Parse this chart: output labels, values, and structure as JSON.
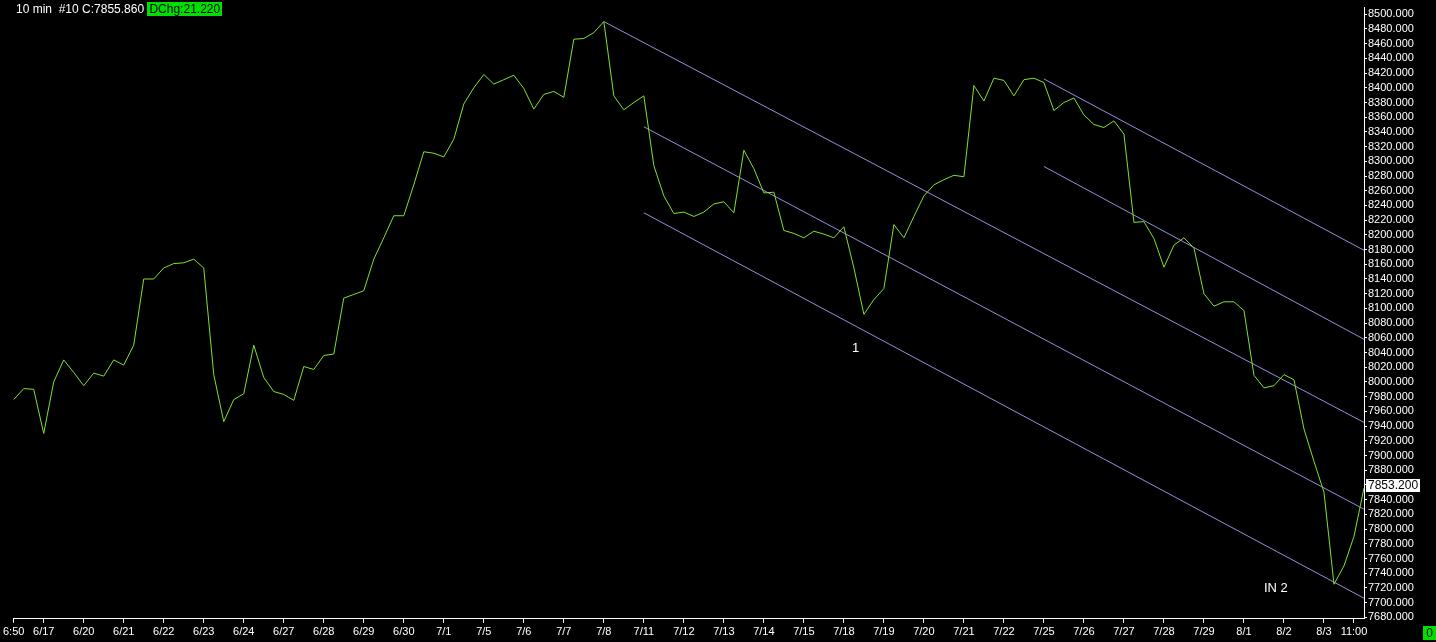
{
  "chart_data": {
    "type": "line",
    "title": "10 min  #10 C:7855.860",
    "subtitle": "DChg:21.220",
    "categories": [
      "6:50",
      null,
      null,
      "6/17",
      null,
      null,
      null,
      "6/20",
      null,
      null,
      null,
      "6/21",
      null,
      null,
      null,
      "6/22",
      null,
      null,
      null,
      "6/23",
      null,
      null,
      null,
      "6/24",
      null,
      null,
      null,
      "6/27",
      null,
      null,
      null,
      "6/28",
      null,
      null,
      null,
      "6/29",
      null,
      null,
      null,
      "6/30",
      null,
      null,
      null,
      "7/1",
      null,
      null,
      null,
      "7/5",
      null,
      null,
      null,
      "7/6",
      null,
      null,
      null,
      "7/7",
      null,
      null,
      null,
      "7/8",
      null,
      null,
      null,
      "7/11",
      null,
      null,
      null,
      "7/12",
      null,
      null,
      null,
      "7/13",
      null,
      null,
      null,
      "7/14",
      null,
      null,
      null,
      "7/15",
      null,
      null,
      null,
      "7/18",
      null,
      null,
      null,
      "7/19",
      null,
      null,
      null,
      "7/20",
      null,
      null,
      null,
      "7/21",
      null,
      null,
      null,
      "7/22",
      null,
      null,
      null,
      "7/25",
      null,
      null,
      null,
      "7/26",
      null,
      null,
      null,
      "7/27",
      null,
      null,
      null,
      "7/28",
      null,
      null,
      null,
      "7/29",
      null,
      null,
      null,
      "8/1",
      null,
      null,
      null,
      "8/2",
      null,
      null,
      null,
      "8/3",
      null,
      null,
      "11:00",
      null
    ],
    "ylim": [
      7678,
      8509
    ],
    "yticks": [
      {
        "value": 7680,
        "label": "7680.000"
      },
      {
        "value": 7700,
        "label": "7700.000"
      },
      {
        "value": 7720,
        "label": "7720.000"
      },
      {
        "value": 7740,
        "label": "7740.000"
      },
      {
        "value": 7760,
        "label": "7760.000"
      },
      {
        "value": 7780,
        "label": "7780.000"
      },
      {
        "value": 7800,
        "label": "7800.000"
      },
      {
        "value": 7820,
        "label": "7820.000"
      },
      {
        "value": 7840,
        "label": "7840.000"
      },
      {
        "value": 7860,
        "label": null
      },
      {
        "value": 7880,
        "label": "7880.000"
      },
      {
        "value": 7900,
        "label": "7900.000"
      },
      {
        "value": 7920,
        "label": "7920.000"
      },
      {
        "value": 7940,
        "label": "7940.000"
      },
      {
        "value": 7960,
        "label": "7960.000"
      },
      {
        "value": 7980,
        "label": "7980.000"
      },
      {
        "value": 8000,
        "label": "8000.000"
      },
      {
        "value": 8020,
        "label": "8020.000"
      },
      {
        "value": 8040,
        "label": "8040.000"
      },
      {
        "value": 8060,
        "label": "8060.000"
      },
      {
        "value": 8080,
        "label": "8080.000"
      },
      {
        "value": 8100,
        "label": "8100.000"
      },
      {
        "value": 8120,
        "label": "8120.000"
      },
      {
        "value": 8140,
        "label": "8140.000"
      },
      {
        "value": 8160,
        "label": "8160.000"
      },
      {
        "value": 8180,
        "label": "8180.000"
      },
      {
        "value": 8200,
        "label": "8200.000"
      },
      {
        "value": 8220,
        "label": "8220.000"
      },
      {
        "value": 8240,
        "label": "8240.000"
      },
      {
        "value": 8260,
        "label": "8260.000"
      },
      {
        "value": 8280,
        "label": "8280.000"
      },
      {
        "value": 8300,
        "label": "8300.000"
      },
      {
        "value": 8320,
        "label": "8320.000"
      },
      {
        "value": 8340,
        "label": "8340.000"
      },
      {
        "value": 8360,
        "label": "8360.000"
      },
      {
        "value": 8380,
        "label": "8380.000"
      },
      {
        "value": 8400,
        "label": "8400.000"
      },
      {
        "value": 8420,
        "label": "8420.000"
      },
      {
        "value": 8440,
        "label": "8440.000"
      },
      {
        "value": 8460,
        "label": "8460.000"
      },
      {
        "value": 8480,
        "label": "8480.000"
      },
      {
        "value": 8500,
        "label": "8500.000"
      }
    ],
    "grid": false,
    "legend": false,
    "marker": "none",
    "series": [
      {
        "color": "#80e030",
        "values": [
          7976,
          7991,
          7990,
          7930,
          8000,
          8030,
          8013,
          7995,
          8012,
          8008,
          8030,
          8023,
          8050,
          8140,
          8140,
          8155,
          8161,
          8162,
          8167,
          8155,
          8010,
          7946,
          7976,
          7984,
          8050,
          8006,
          7987,
          7983,
          7975,
          8021,
          8017,
          8036,
          8038,
          8114,
          8119,
          8124,
          8167,
          8196,
          8226,
          8226,
          8268,
          8313,
          8311,
          8306,
          8330,
          8378,
          8400,
          8418,
          8405,
          8411,
          8417,
          8399,
          8371,
          8391,
          8395,
          8387,
          8466,
          8467,
          8475,
          8490,
          8389,
          8370,
          8380,
          8389,
          8294,
          8253,
          8229,
          8231,
          8225,
          8231,
          8242,
          8245,
          8230,
          8315,
          8290,
          8257,
          8258,
          8206,
          8202,
          8196,
          8205,
          8201,
          8196,
          8211,
          8155,
          8092,
          8112,
          8127,
          8214,
          8196,
          8225,
          8253,
          8268,
          8275,
          8281,
          8279,
          8403,
          8382,
          8413,
          8410,
          8389,
          8411,
          8413,
          8407,
          8369,
          8380,
          8386,
          8363,
          8350,
          8346,
          8355,
          8337,
          8217,
          8218,
          8195,
          8156,
          8186,
          8196,
          8182,
          8120,
          8103,
          8109,
          8109,
          8097,
          8009,
          7992,
          7995,
          8010,
          8003,
          7936,
          7892,
          7850,
          7725,
          7750,
          7790,
          7856
        ]
      },
      {
        "color": "#9090e0",
        "values": [
          null,
          null,
          null,
          null,
          null,
          null,
          null,
          null,
          null,
          null,
          null,
          null,
          null,
          null,
          null,
          null,
          null,
          null,
          null,
          null,
          null,
          null,
          null,
          null,
          null,
          null,
          null,
          null,
          null,
          null,
          null,
          null,
          null,
          null,
          null,
          null,
          null,
          null,
          null,
          null,
          null,
          null,
          null,
          null,
          null,
          null,
          null,
          null,
          null,
          null,
          null,
          null,
          null,
          null,
          null,
          null,
          null,
          null,
          null,
          8490,
          null,
          null,
          null,
          null,
          null,
          null,
          null,
          null,
          null,
          null,
          null,
          null,
          null,
          null,
          null,
          null,
          null,
          null,
          null,
          null,
          null,
          null,
          null,
          null,
          null,
          null,
          null,
          null,
          null,
          null,
          null,
          null,
          null,
          null,
          null,
          null,
          null,
          null,
          null,
          null,
          null,
          null,
          null,
          null,
          null,
          null,
          null,
          null,
          null,
          null,
          null,
          null,
          null,
          null,
          null,
          null,
          null,
          null,
          null,
          null,
          null,
          null,
          null,
          null,
          null,
          null,
          null,
          null,
          null,
          null,
          null,
          null,
          null,
          null,
          null,
          7945
        ]
      },
      {
        "color": "#9090e0",
        "values": [
          null,
          null,
          null,
          null,
          null,
          null,
          null,
          null,
          null,
          null,
          null,
          null,
          null,
          null,
          null,
          null,
          null,
          null,
          null,
          null,
          null,
          null,
          null,
          null,
          null,
          null,
          null,
          null,
          null,
          null,
          null,
          null,
          null,
          null,
          null,
          null,
          null,
          null,
          null,
          null,
          null,
          null,
          null,
          null,
          null,
          null,
          null,
          null,
          null,
          null,
          null,
          null,
          null,
          null,
          null,
          null,
          null,
          null,
          null,
          null,
          null,
          null,
          null,
          8347,
          null,
          null,
          null,
          null,
          null,
          null,
          null,
          null,
          null,
          null,
          null,
          null,
          null,
          null,
          null,
          null,
          null,
          null,
          null,
          null,
          null,
          null,
          null,
          null,
          null,
          null,
          null,
          null,
          null,
          null,
          null,
          null,
          null,
          null,
          null,
          null,
          null,
          null,
          null,
          null,
          null,
          null,
          null,
          null,
          null,
          null,
          null,
          null,
          null,
          null,
          null,
          null,
          null,
          null,
          null,
          null,
          null,
          null,
          null,
          null,
          null,
          null,
          null,
          null,
          null,
          null,
          null,
          null,
          null,
          null,
          null,
          7827
        ]
      },
      {
        "color": "#9090e0",
        "values": [
          null,
          null,
          null,
          null,
          null,
          null,
          null,
          null,
          null,
          null,
          null,
          null,
          null,
          null,
          null,
          null,
          null,
          null,
          null,
          null,
          null,
          null,
          null,
          null,
          null,
          null,
          null,
          null,
          null,
          null,
          null,
          null,
          null,
          null,
          null,
          null,
          null,
          null,
          null,
          null,
          null,
          null,
          null,
          null,
          null,
          null,
          null,
          null,
          null,
          null,
          null,
          null,
          null,
          null,
          null,
          null,
          null,
          null,
          null,
          null,
          null,
          null,
          null,
          8230,
          null,
          null,
          null,
          null,
          null,
          null,
          null,
          null,
          null,
          null,
          null,
          null,
          null,
          null,
          null,
          null,
          null,
          null,
          null,
          null,
          null,
          null,
          null,
          null,
          null,
          null,
          null,
          null,
          null,
          null,
          null,
          null,
          null,
          null,
          null,
          null,
          null,
          null,
          null,
          null,
          null,
          null,
          null,
          null,
          null,
          null,
          null,
          null,
          null,
          null,
          null,
          null,
          null,
          null,
          null,
          null,
          null,
          null,
          null,
          null,
          null,
          null,
          null,
          null,
          null,
          null,
          null,
          null,
          null,
          null,
          null,
          7706
        ]
      },
      {
        "color": "#9090e0",
        "values": [
          null,
          null,
          null,
          null,
          null,
          null,
          null,
          null,
          null,
          null,
          null,
          null,
          null,
          null,
          null,
          null,
          null,
          null,
          null,
          null,
          null,
          null,
          null,
          null,
          null,
          null,
          null,
          null,
          null,
          null,
          null,
          null,
          null,
          null,
          null,
          null,
          null,
          null,
          null,
          null,
          null,
          null,
          null,
          null,
          null,
          null,
          null,
          null,
          null,
          null,
          null,
          null,
          null,
          null,
          null,
          null,
          null,
          null,
          null,
          null,
          null,
          null,
          null,
          null,
          null,
          null,
          null,
          null,
          null,
          null,
          null,
          null,
          null,
          null,
          null,
          null,
          null,
          null,
          null,
          null,
          null,
          null,
          null,
          null,
          null,
          null,
          null,
          null,
          null,
          null,
          null,
          null,
          null,
          null,
          null,
          null,
          null,
          null,
          null,
          null,
          null,
          null,
          null,
          8412,
          null,
          null,
          null,
          null,
          null,
          null,
          null,
          null,
          null,
          null,
          null,
          null,
          null,
          null,
          null,
          null,
          null,
          null,
          null,
          null,
          null,
          null,
          null,
          null,
          null,
          null,
          null,
          null,
          null,
          null,
          null,
          8179
        ]
      },
      {
        "color": "#9090e0",
        "values": [
          null,
          null,
          null,
          null,
          null,
          null,
          null,
          null,
          null,
          null,
          null,
          null,
          null,
          null,
          null,
          null,
          null,
          null,
          null,
          null,
          null,
          null,
          null,
          null,
          null,
          null,
          null,
          null,
          null,
          null,
          null,
          null,
          null,
          null,
          null,
          null,
          null,
          null,
          null,
          null,
          null,
          null,
          null,
          null,
          null,
          null,
          null,
          null,
          null,
          null,
          null,
          null,
          null,
          null,
          null,
          null,
          null,
          null,
          null,
          null,
          null,
          null,
          null,
          null,
          null,
          null,
          null,
          null,
          null,
          null,
          null,
          null,
          null,
          null,
          null,
          null,
          null,
          null,
          null,
          null,
          null,
          null,
          null,
          null,
          null,
          null,
          null,
          null,
          null,
          null,
          null,
          null,
          null,
          null,
          null,
          null,
          null,
          null,
          null,
          null,
          null,
          null,
          null,
          8293,
          null,
          null,
          null,
          null,
          null,
          null,
          null,
          null,
          null,
          null,
          null,
          null,
          null,
          null,
          null,
          null,
          null,
          null,
          null,
          null,
          null,
          null,
          null,
          null,
          null,
          null,
          null,
          null,
          null,
          null,
          null,
          8058
        ]
      }
    ],
    "annotations": [
      "1",
      "IN 2",
      "7853.200",
      "0"
    ]
  }
}
